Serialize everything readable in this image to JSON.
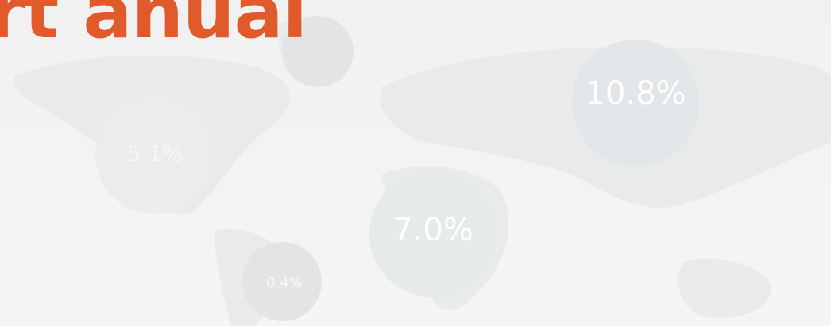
{
  "header": {
    "title": "rt anual"
  },
  "map": {
    "bubbles": [
      {
        "label": "10.8%"
      },
      {
        "label": "7.0%"
      },
      {
        "label": "0.4%"
      },
      {
        "label": "5.1%"
      }
    ]
  }
}
